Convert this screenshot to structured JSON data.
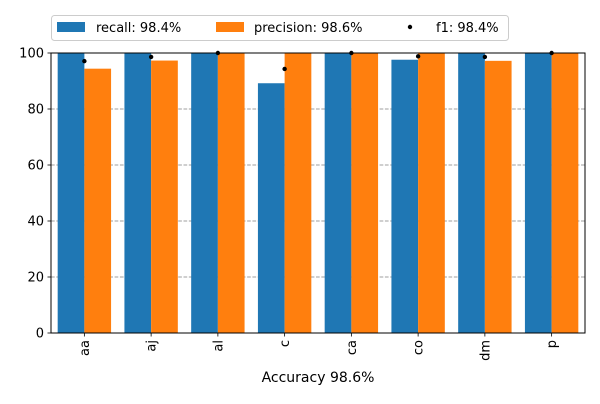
{
  "chart_data": {
    "type": "bar",
    "categories": [
      "aa",
      "aj",
      "al",
      "c",
      "ca",
      "co",
      "dm",
      "p"
    ],
    "series": [
      {
        "name": "recall: 98.4%",
        "kind": "bar",
        "color": "#1f77b4",
        "values": [
          100,
          100,
          100,
          89.2,
          100,
          97.6,
          100,
          100
        ]
      },
      {
        "name": "precision: 98.6%",
        "kind": "bar",
        "color": "#ff7f0e",
        "values": [
          94.4,
          97.3,
          100,
          100,
          100,
          100,
          97.2,
          100
        ]
      },
      {
        "name": "f1: 98.4%",
        "kind": "point",
        "color": "#000000",
        "values": [
          97.1,
          98.6,
          100,
          94.3,
          100,
          98.8,
          98.6,
          100
        ]
      }
    ],
    "title": "",
    "xlabel": "Accuracy 98.6%",
    "ylabel": "",
    "ylim": [
      0,
      100
    ],
    "yticks": [
      "0",
      "20",
      "40",
      "60",
      "80",
      "100"
    ],
    "grid": "horizontal-dashed",
    "legend": "top"
  }
}
